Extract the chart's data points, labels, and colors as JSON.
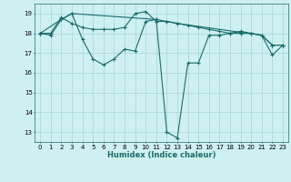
{
  "xlabel": "Humidex (Indice chaleur)",
  "background_color": "#cff0f0",
  "grid_color": "#aadada",
  "line_color": "#1a6b6b",
  "xlim": [
    -0.5,
    23.5
  ],
  "ylim": [
    12.5,
    19.5
  ],
  "yticks": [
    13,
    14,
    15,
    16,
    17,
    18,
    19
  ],
  "xticks": [
    0,
    1,
    2,
    3,
    4,
    5,
    6,
    7,
    8,
    9,
    10,
    11,
    12,
    13,
    14,
    15,
    16,
    17,
    18,
    19,
    20,
    21,
    22,
    23
  ],
  "line1_x": [
    0,
    1,
    2,
    3,
    4,
    5,
    6,
    7,
    8,
    9,
    10,
    11,
    12,
    13,
    14,
    15,
    16,
    17,
    18,
    19,
    20,
    21,
    22,
    23
  ],
  "line1_y": [
    18.0,
    17.9,
    18.7,
    19.0,
    17.7,
    16.7,
    16.4,
    16.7,
    17.2,
    17.1,
    18.6,
    18.7,
    13.0,
    12.7,
    16.5,
    16.5,
    17.9,
    17.9,
    18.0,
    18.1,
    18.0,
    17.9,
    16.9,
    17.4
  ],
  "line2_x": [
    0,
    1,
    2,
    3,
    4,
    5,
    6,
    7,
    8,
    9,
    10,
    11,
    12,
    13,
    14,
    15,
    16,
    17,
    18,
    19,
    20,
    21,
    22,
    23
  ],
  "line2_y": [
    18.0,
    18.0,
    18.8,
    18.5,
    18.3,
    18.2,
    18.2,
    18.2,
    18.3,
    19.0,
    19.1,
    18.6,
    18.6,
    18.5,
    18.4,
    18.3,
    18.2,
    18.1,
    18.0,
    18.0,
    18.0,
    17.9,
    17.4,
    17.4
  ],
  "line3_x": [
    0,
    2,
    3,
    11,
    13,
    21,
    22,
    23
  ],
  "line3_y": [
    18.0,
    18.7,
    19.0,
    18.7,
    18.5,
    17.9,
    17.4,
    17.4
  ]
}
